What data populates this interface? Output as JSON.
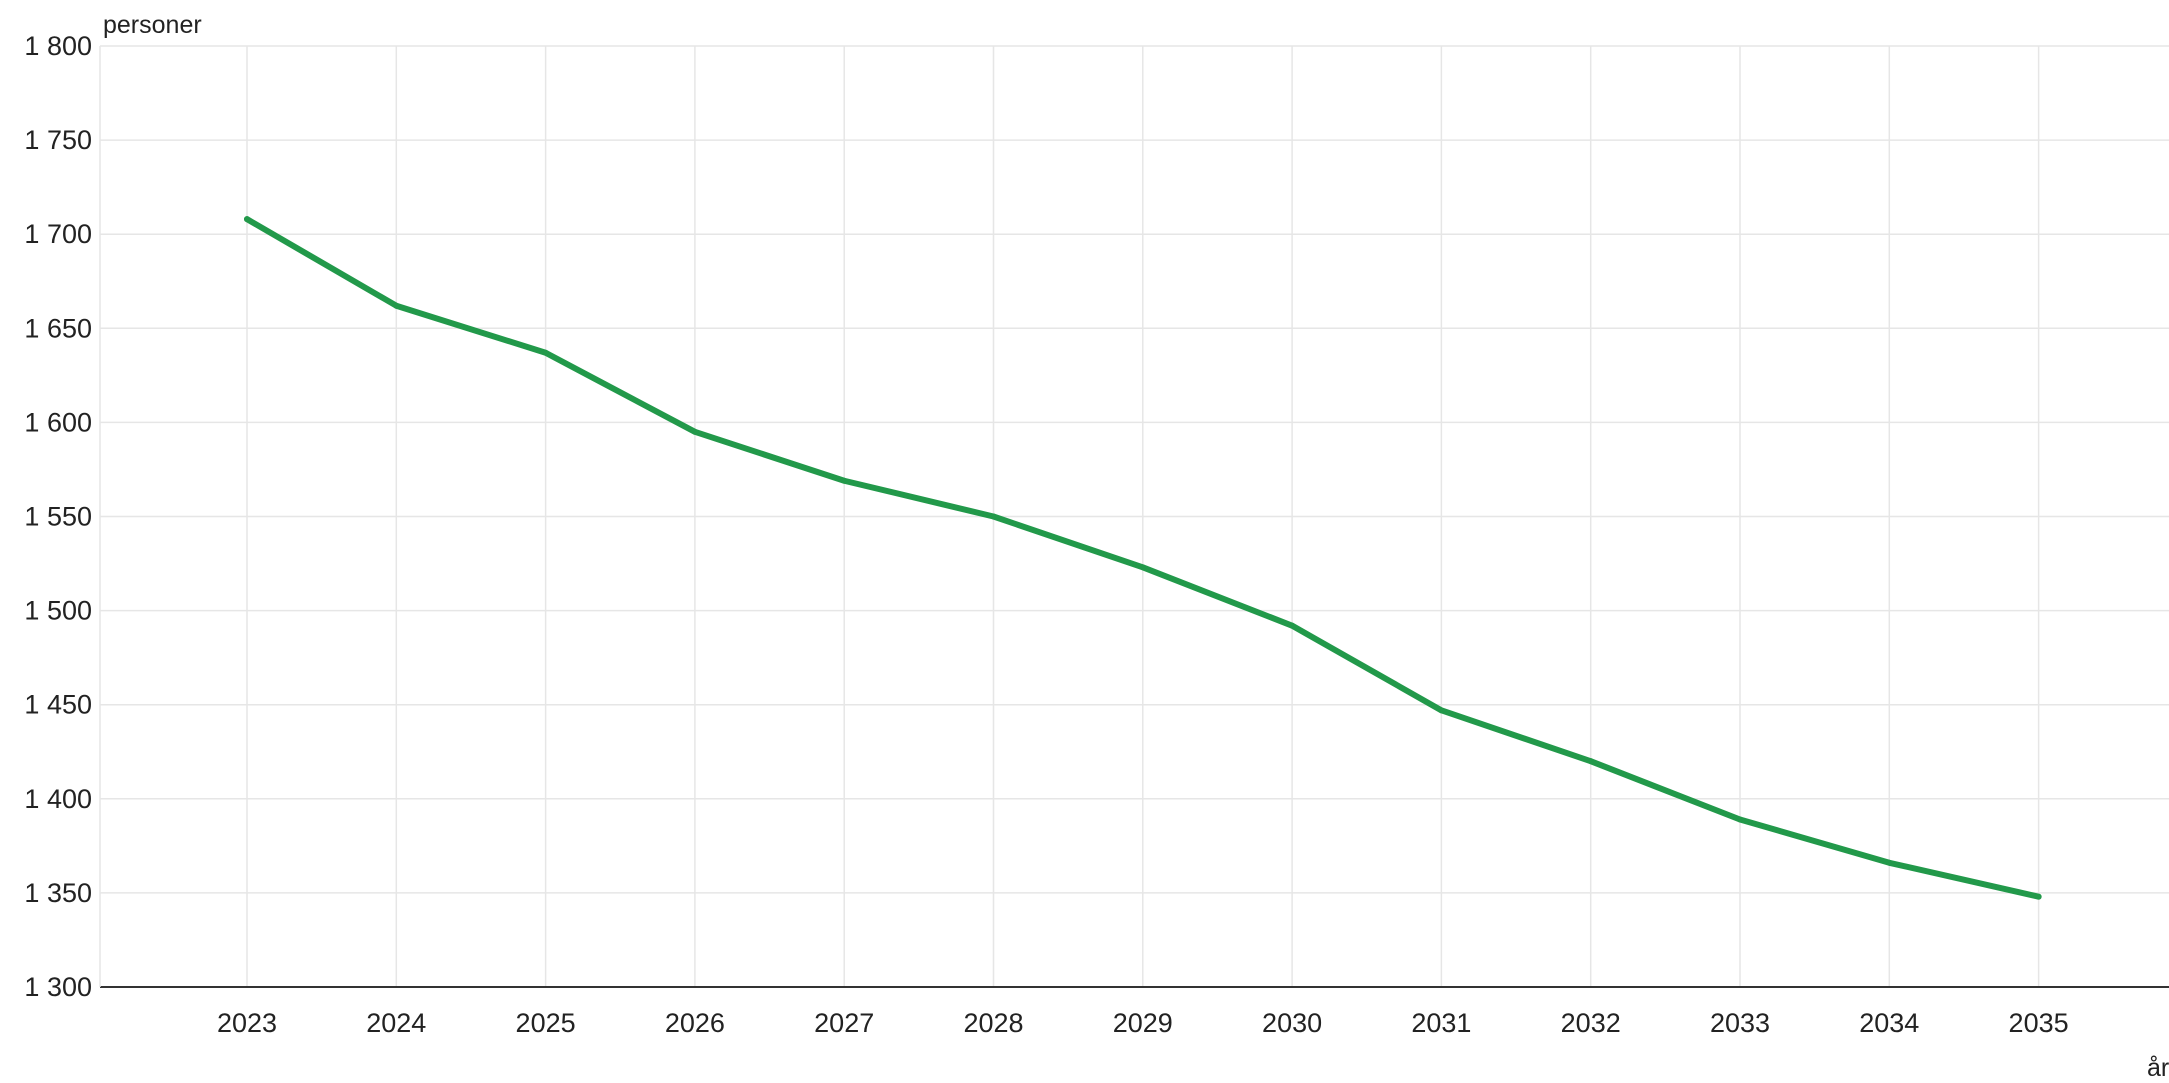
{
  "chart_data": {
    "type": "line",
    "ylabel": "personer",
    "xlabel": "år",
    "x": [
      2023,
      2024,
      2025,
      2026,
      2027,
      2028,
      2029,
      2030,
      2031,
      2032,
      2033,
      2034,
      2035
    ],
    "series": [
      {
        "values": [
          1708,
          1662,
          1637,
          1595,
          1569,
          1550,
          1523,
          1492,
          1447,
          1420,
          1389,
          1366,
          1348
        ],
        "color": "#22994a"
      }
    ],
    "ylim": [
      1300,
      1800
    ],
    "y_ticks": [
      1300,
      1350,
      1400,
      1450,
      1500,
      1550,
      1600,
      1650,
      1700,
      1750,
      1800
    ],
    "y_tick_labels": [
      "1 300",
      "1 350",
      "1 400",
      "1 450",
      "1 500",
      "1 550",
      "1 600",
      "1 650",
      "1 700",
      "1 750",
      "1 800"
    ],
    "x_tick_labels": [
      "2023",
      "2024",
      "2025",
      "2026",
      "2027",
      "2028",
      "2029",
      "2030",
      "2031",
      "2032",
      "2033",
      "2034",
      "2035"
    ],
    "grid": true,
    "legend": "none",
    "gridline_color": "#e6e6e6",
    "axis_color": "#333333"
  }
}
